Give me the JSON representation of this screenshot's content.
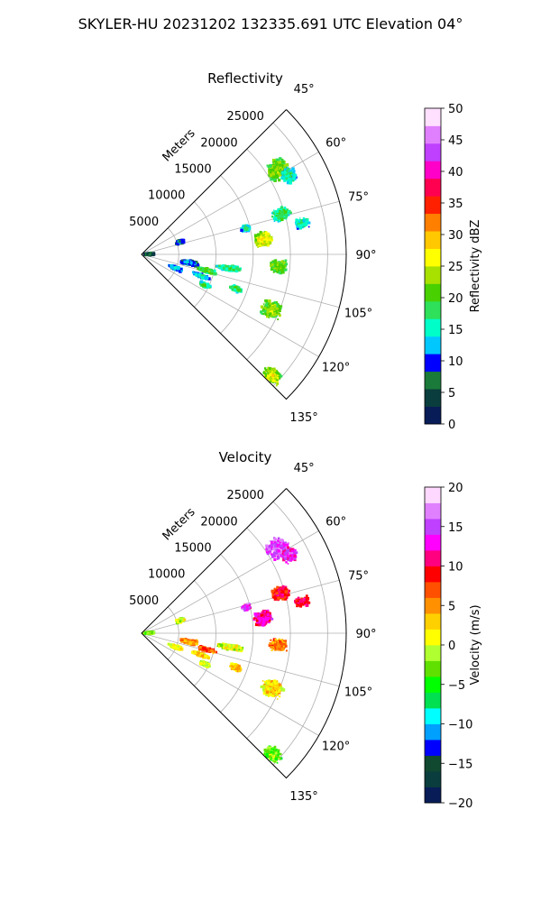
{
  "figure": {
    "suptitle": "SKYLER-HU  20231202  132335.691 UTC Elevation 04°"
  },
  "chart_data": [
    {
      "type": "heatmap",
      "subtype": "polar-sector (radar PPI)",
      "title": "Reflectivity",
      "radial_axis_label": "Meters",
      "radial_tick_labels": [
        "5000",
        "10000",
        "15000",
        "20000",
        "25000"
      ],
      "radial_ticks": [
        5000,
        10000,
        15000,
        20000,
        25000
      ],
      "radial_max": 27500,
      "angle_tick_labels": [
        "45°",
        "60°",
        "75°",
        "90°",
        "105°",
        "120°",
        "135°"
      ],
      "angle_ticks": [
        45,
        60,
        75,
        90,
        105,
        120,
        135
      ],
      "grid": true,
      "colorbar": {
        "label": "Reflectivity dBZ",
        "tick_labels": [
          "0",
          "5",
          "10",
          "15",
          "20",
          "25",
          "30",
          "35",
          "40",
          "45",
          "50"
        ],
        "range": [
          0,
          50
        ],
        "colors": [
          "#081d58",
          "#0a3d3d",
          "#1a7a3a",
          "#0000ff",
          "#00c8ff",
          "#00ffc8",
          "#2ee05a",
          "#48d000",
          "#a8e000",
          "#ffff00",
          "#ffc800",
          "#ff8000",
          "#ff2000",
          "#ff0050",
          "#ff00c8",
          "#c040ff",
          "#e080ff",
          "#ffe0ff"
        ]
      },
      "echoes": [
        {
          "az": 58,
          "r": 21500,
          "dz": 4,
          "dr": 1800,
          "value": 24
        },
        {
          "az": 62,
          "r": 22500,
          "dz": 3,
          "dr": 1200,
          "value": 18
        },
        {
          "az": 74,
          "r": 19500,
          "dz": 3,
          "dr": 1500,
          "value": 20
        },
        {
          "az": 79,
          "r": 22000,
          "dz": 2,
          "dr": 1200,
          "value": 18
        },
        {
          "az": 76,
          "r": 14500,
          "dz": 2,
          "dr": 800,
          "value": 17
        },
        {
          "az": 83,
          "r": 16500,
          "dz": 4,
          "dr": 1400,
          "value": 28
        },
        {
          "az": 95,
          "r": 18500,
          "dz": 3,
          "dr": 1400,
          "value": 24
        },
        {
          "az": 99,
          "r": 12000,
          "dz": 2,
          "dr": 2000,
          "value": 20
        },
        {
          "az": 113,
          "r": 19000,
          "dz": 4,
          "dr": 1600,
          "value": 25
        },
        {
          "az": 133,
          "r": 24000,
          "dz": 3,
          "dr": 1500,
          "value": 26
        },
        {
          "az": 104,
          "r": 9000,
          "dz": 2,
          "dr": 1500,
          "value": 22
        },
        {
          "az": 110,
          "r": 8500,
          "dz": 2,
          "dr": 1400,
          "value": 16
        },
        {
          "az": 116,
          "r": 9500,
          "dz": 2,
          "dr": 900,
          "value": 21
        },
        {
          "az": 110,
          "r": 13500,
          "dz": 2,
          "dr": 1000,
          "value": 20
        },
        {
          "az": 100,
          "r": 6500,
          "dz": 3,
          "dr": 1500,
          "value": 13
        },
        {
          "az": 112,
          "r": 5000,
          "dz": 3,
          "dr": 1200,
          "value": 15
        },
        {
          "az": 72,
          "r": 5500,
          "dz": 3,
          "dr": 700,
          "value": 12
        },
        {
          "az": 88,
          "r": 1000,
          "dz": 8,
          "dr": 800,
          "value": 8
        }
      ]
    },
    {
      "type": "heatmap",
      "subtype": "polar-sector (radar PPI)",
      "title": "Velocity",
      "radial_axis_label": "Meters",
      "radial_tick_labels": [
        "5000",
        "10000",
        "15000",
        "20000",
        "25000"
      ],
      "radial_ticks": [
        5000,
        10000,
        15000,
        20000,
        25000
      ],
      "radial_max": 27500,
      "angle_tick_labels": [
        "45°",
        "60°",
        "75°",
        "90°",
        "105°",
        "120°",
        "135°"
      ],
      "angle_ticks": [
        45,
        60,
        75,
        90,
        105,
        120,
        135
      ],
      "grid": true,
      "colorbar": {
        "label": "Velocity (m/s)",
        "tick_labels": [
          "−20",
          "−15",
          "−10",
          "−5",
          "0",
          "5",
          "10",
          "15",
          "20"
        ],
        "range": [
          -20,
          20
        ],
        "colors": [
          "#081d58",
          "#0a3d3d",
          "#104830",
          "#0000ff",
          "#00a0ff",
          "#00ffff",
          "#00e050",
          "#00ff00",
          "#60e000",
          "#b0ff30",
          "#ffff00",
          "#ffd000",
          "#ff9000",
          "#ff5000",
          "#ff0000",
          "#ff0080",
          "#ff00ff",
          "#c040ff",
          "#e080ff",
          "#ffd8ff"
        ]
      },
      "echoes": [
        {
          "az": 58,
          "r": 21500,
          "dz": 4,
          "dr": 1800,
          "value": 16
        },
        {
          "az": 62,
          "r": 22500,
          "dz": 3,
          "dr": 1200,
          "value": 14
        },
        {
          "az": 74,
          "r": 19500,
          "dz": 3,
          "dr": 1500,
          "value": 10
        },
        {
          "az": 79,
          "r": 22000,
          "dz": 2,
          "dr": 1200,
          "value": 11
        },
        {
          "az": 76,
          "r": 14500,
          "dz": 2,
          "dr": 800,
          "value": 15
        },
        {
          "az": 83,
          "r": 16500,
          "dz": 4,
          "dr": 1400,
          "value": 13
        },
        {
          "az": 95,
          "r": 18500,
          "dz": 3,
          "dr": 1400,
          "value": 7
        },
        {
          "az": 99,
          "r": 12000,
          "dz": 2,
          "dr": 2000,
          "value": 1
        },
        {
          "az": 113,
          "r": 19000,
          "dz": 4,
          "dr": 1600,
          "value": 3
        },
        {
          "az": 133,
          "r": 24000,
          "dz": 3,
          "dr": 1500,
          "value": -2
        },
        {
          "az": 104,
          "r": 9000,
          "dz": 2,
          "dr": 1500,
          "value": 8
        },
        {
          "az": 110,
          "r": 8500,
          "dz": 2,
          "dr": 1400,
          "value": 3
        },
        {
          "az": 116,
          "r": 9500,
          "dz": 2,
          "dr": 900,
          "value": 1
        },
        {
          "az": 110,
          "r": 13500,
          "dz": 2,
          "dr": 1000,
          "value": 4
        },
        {
          "az": 100,
          "r": 6500,
          "dz": 3,
          "dr": 1500,
          "value": 6
        },
        {
          "az": 112,
          "r": 5000,
          "dz": 3,
          "dr": 1200,
          "value": 2
        },
        {
          "az": 72,
          "r": 5500,
          "dz": 3,
          "dr": 700,
          "value": 1
        },
        {
          "az": 88,
          "r": 1000,
          "dz": 8,
          "dr": 800,
          "value": -1
        }
      ]
    }
  ]
}
